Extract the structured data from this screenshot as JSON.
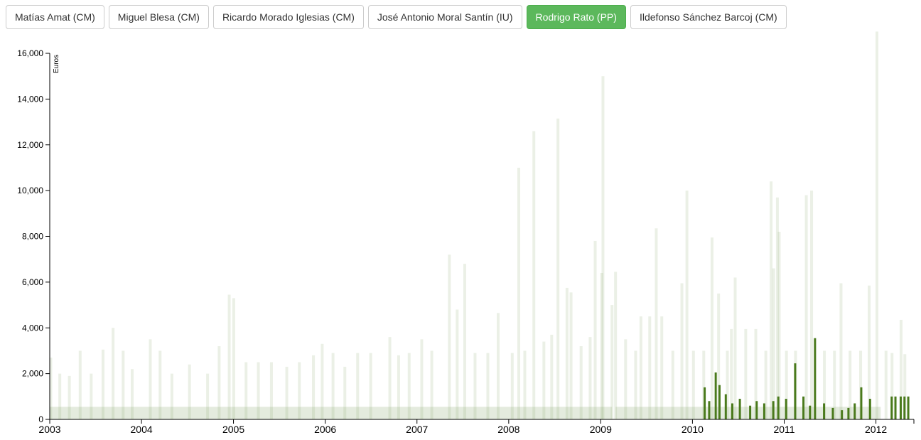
{
  "buttons": [
    {
      "label": "Matías Amat (CM)",
      "active": false
    },
    {
      "label": "Miguel Blesa (CM)",
      "active": false
    },
    {
      "label": "Ricardo Morado Iglesias (CM)",
      "active": false
    },
    {
      "label": "José Antonio Moral Santín (IU)",
      "active": false
    },
    {
      "label": "Rodrigo Rato (PP)",
      "active": true
    },
    {
      "label": "Ildefonso Sánchez Barcoj (CM)",
      "active": false
    }
  ],
  "chart_data": {
    "type": "bar",
    "title": "",
    "xlabel": "",
    "ylabel": "Euros",
    "ylim": [
      0,
      16000
    ],
    "xlim": [
      "2003-01-01",
      "2012-05-31"
    ],
    "y_ticks": [
      {
        "value": 0,
        "label": "0"
      },
      {
        "value": 2000,
        "label": "2,000"
      },
      {
        "value": 4000,
        "label": "4,000"
      },
      {
        "value": 6000,
        "label": "6,000"
      },
      {
        "value": 8000,
        "label": "8,000"
      },
      {
        "value": 10000,
        "label": "10,000"
      },
      {
        "value": 12000,
        "label": "12,000"
      },
      {
        "value": 14000,
        "label": "14,000"
      },
      {
        "value": 16000,
        "label": "16,000"
      }
    ],
    "x_ticks": [
      {
        "value": "2003-01-01",
        "label": "2003"
      },
      {
        "value": "2004-01-01",
        "label": "2004"
      },
      {
        "value": "2005-01-01",
        "label": "2005"
      },
      {
        "value": "2006-01-01",
        "label": "2006"
      },
      {
        "value": "2007-01-01",
        "label": "2007"
      },
      {
        "value": "2008-01-01",
        "label": "2008"
      },
      {
        "value": "2009-01-01",
        "label": "2009"
      },
      {
        "value": "2010-01-01",
        "label": "2010"
      },
      {
        "value": "2011-01-01",
        "label": "2011"
      },
      {
        "value": "2012-01-01",
        "label": "2012"
      }
    ],
    "colors": {
      "background_series": "#7a9a5a",
      "highlight_series": "#4a7a1c",
      "axis": "#000000"
    },
    "series": [
      {
        "role": "all-directors",
        "opacity": 0.15,
        "points": [
          {
            "date": "2003-01-05",
            "value": 2700
          },
          {
            "date": "2003-02-10",
            "value": 2000
          },
          {
            "date": "2003-03-20",
            "value": 1900
          },
          {
            "date": "2003-05-02",
            "value": 3000
          },
          {
            "date": "2003-06-15",
            "value": 2000
          },
          {
            "date": "2003-08-01",
            "value": 3050
          },
          {
            "date": "2003-09-10",
            "value": 4000
          },
          {
            "date": "2003-10-20",
            "value": 3000
          },
          {
            "date": "2003-11-25",
            "value": 2200
          },
          {
            "date": "2004-02-05",
            "value": 3500
          },
          {
            "date": "2004-03-15",
            "value": 3000
          },
          {
            "date": "2004-05-01",
            "value": 2000
          },
          {
            "date": "2004-07-10",
            "value": 2400
          },
          {
            "date": "2004-09-20",
            "value": 2000
          },
          {
            "date": "2004-11-05",
            "value": 3200
          },
          {
            "date": "2004-12-15",
            "value": 5450
          },
          {
            "date": "2005-01-02",
            "value": 5300
          },
          {
            "date": "2005-02-20",
            "value": 2500
          },
          {
            "date": "2005-04-10",
            "value": 2500
          },
          {
            "date": "2005-06-01",
            "value": 2500
          },
          {
            "date": "2005-08-01",
            "value": 2300
          },
          {
            "date": "2005-09-20",
            "value": 2500
          },
          {
            "date": "2005-11-15",
            "value": 2800
          },
          {
            "date": "2005-12-20",
            "value": 3300
          },
          {
            "date": "2006-02-01",
            "value": 2900
          },
          {
            "date": "2006-03-20",
            "value": 2300
          },
          {
            "date": "2006-05-10",
            "value": 2900
          },
          {
            "date": "2006-07-01",
            "value": 2900
          },
          {
            "date": "2006-09-15",
            "value": 3600
          },
          {
            "date": "2006-10-20",
            "value": 2800
          },
          {
            "date": "2006-12-01",
            "value": 2900
          },
          {
            "date": "2007-01-20",
            "value": 3500
          },
          {
            "date": "2007-03-01",
            "value": 3000
          },
          {
            "date": "2007-05-10",
            "value": 7200
          },
          {
            "date": "2007-06-10",
            "value": 4800
          },
          {
            "date": "2007-07-10",
            "value": 6800
          },
          {
            "date": "2007-08-20",
            "value": 2900
          },
          {
            "date": "2007-10-10",
            "value": 2900
          },
          {
            "date": "2007-11-20",
            "value": 4650
          },
          {
            "date": "2008-01-15",
            "value": 2900
          },
          {
            "date": "2008-02-10",
            "value": 11000
          },
          {
            "date": "2008-03-05",
            "value": 3000
          },
          {
            "date": "2008-04-10",
            "value": 12600
          },
          {
            "date": "2008-05-20",
            "value": 3400
          },
          {
            "date": "2008-06-20",
            "value": 3700
          },
          {
            "date": "2008-07-15",
            "value": 13150
          },
          {
            "date": "2008-08-20",
            "value": 5750
          },
          {
            "date": "2008-09-05",
            "value": 5550
          },
          {
            "date": "2008-10-15",
            "value": 3200
          },
          {
            "date": "2008-11-20",
            "value": 3600
          },
          {
            "date": "2008-12-10",
            "value": 7800
          },
          {
            "date": "2009-01-05",
            "value": 6400
          },
          {
            "date": "2009-01-10",
            "value": 15000
          },
          {
            "date": "2009-02-15",
            "value": 5000
          },
          {
            "date": "2009-03-01",
            "value": 6450
          },
          {
            "date": "2009-04-10",
            "value": 3500
          },
          {
            "date": "2009-05-20",
            "value": 3000
          },
          {
            "date": "2009-06-10",
            "value": 4500
          },
          {
            "date": "2009-07-15",
            "value": 4500
          },
          {
            "date": "2009-08-10",
            "value": 8350
          },
          {
            "date": "2009-09-01",
            "value": 4500
          },
          {
            "date": "2009-10-15",
            "value": 3000
          },
          {
            "date": "2009-11-20",
            "value": 5950
          },
          {
            "date": "2009-12-10",
            "value": 10000
          },
          {
            "date": "2010-01-05",
            "value": 3000
          },
          {
            "date": "2010-02-15",
            "value": 3000
          },
          {
            "date": "2010-03-20",
            "value": 7950
          },
          {
            "date": "2010-04-15",
            "value": 5500
          },
          {
            "date": "2010-05-20",
            "value": 3000
          },
          {
            "date": "2010-06-05",
            "value": 3950
          },
          {
            "date": "2010-06-20",
            "value": 6200
          },
          {
            "date": "2010-08-01",
            "value": 3950
          },
          {
            "date": "2010-09-10",
            "value": 3950
          },
          {
            "date": "2010-10-20",
            "value": 3000
          },
          {
            "date": "2010-11-10",
            "value": 10400
          },
          {
            "date": "2010-11-20",
            "value": 6600
          },
          {
            "date": "2010-12-05",
            "value": 9700
          },
          {
            "date": "2010-12-12",
            "value": 8200
          },
          {
            "date": "2011-01-10",
            "value": 3000
          },
          {
            "date": "2011-02-15",
            "value": 3000
          },
          {
            "date": "2011-03-30",
            "value": 9800
          },
          {
            "date": "2011-04-20",
            "value": 10000
          },
          {
            "date": "2011-06-10",
            "value": 3000
          },
          {
            "date": "2011-07-20",
            "value": 3000
          },
          {
            "date": "2011-08-15",
            "value": 5950
          },
          {
            "date": "2011-09-20",
            "value": 3000
          },
          {
            "date": "2011-11-01",
            "value": 3000
          },
          {
            "date": "2011-12-05",
            "value": 5850
          },
          {
            "date": "2012-01-05",
            "value": 16950
          },
          {
            "date": "2012-02-10",
            "value": 3000
          },
          {
            "date": "2012-03-05",
            "value": 2900
          },
          {
            "date": "2012-04-10",
            "value": 4350
          },
          {
            "date": "2012-04-25",
            "value": 2850
          }
        ]
      },
      {
        "role": "selected-director",
        "name": "Rodrigo Rato (PP)",
        "opacity": 1,
        "points": [
          {
            "date": "2010-02-20",
            "value": 1400
          },
          {
            "date": "2010-03-10",
            "value": 800
          },
          {
            "date": "2010-04-05",
            "value": 2050
          },
          {
            "date": "2010-04-20",
            "value": 1500
          },
          {
            "date": "2010-05-15",
            "value": 1100
          },
          {
            "date": "2010-06-10",
            "value": 700
          },
          {
            "date": "2010-07-10",
            "value": 900
          },
          {
            "date": "2010-08-20",
            "value": 600
          },
          {
            "date": "2010-09-15",
            "value": 800
          },
          {
            "date": "2010-10-15",
            "value": 700
          },
          {
            "date": "2010-11-20",
            "value": 800
          },
          {
            "date": "2010-12-10",
            "value": 1000
          },
          {
            "date": "2011-01-10",
            "value": 900
          },
          {
            "date": "2011-02-15",
            "value": 2450
          },
          {
            "date": "2011-03-20",
            "value": 1000
          },
          {
            "date": "2011-04-15",
            "value": 600
          },
          {
            "date": "2011-05-05",
            "value": 3550
          },
          {
            "date": "2011-06-10",
            "value": 700
          },
          {
            "date": "2011-07-15",
            "value": 500
          },
          {
            "date": "2011-08-20",
            "value": 400
          },
          {
            "date": "2011-09-15",
            "value": 500
          },
          {
            "date": "2011-10-10",
            "value": 700
          },
          {
            "date": "2011-11-05",
            "value": 1400
          },
          {
            "date": "2011-12-10",
            "value": 900
          },
          {
            "date": "2012-03-05",
            "value": 1000
          },
          {
            "date": "2012-03-20",
            "value": 1000
          },
          {
            "date": "2012-04-10",
            "value": 1000
          },
          {
            "date": "2012-04-25",
            "value": 1000
          },
          {
            "date": "2012-05-10",
            "value": 1000
          }
        ]
      }
    ]
  }
}
